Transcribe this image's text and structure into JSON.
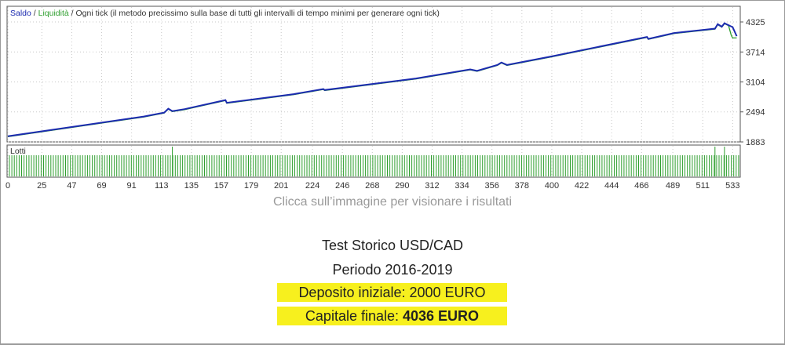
{
  "chart_data": {
    "type": "line",
    "legend": {
      "balance_label": "Saldo",
      "equity_label": "Liquidità",
      "model_label": "Ogni tick (il metodo precissimo sulla base di tutti gli intervalli di tempo minimi per generare ogni tick)"
    },
    "series": [
      {
        "name": "Saldo",
        "color": "#1c2bb0",
        "x": [
          0,
          100,
          115,
          118,
          121,
          130,
          160,
          161,
          210,
          232,
          233,
          300,
          340,
          345,
          360,
          363,
          367,
          400,
          470,
          471,
          490,
          520,
          522,
          525,
          527,
          530,
          533,
          536
        ],
        "y": [
          2000,
          2400,
          2480,
          2560,
          2510,
          2550,
          2735,
          2680,
          2855,
          2960,
          2940,
          3175,
          3360,
          3330,
          3450,
          3500,
          3450,
          3625,
          4020,
          3980,
          4100,
          4190,
          4280,
          4230,
          4300,
          4260,
          4220,
          4036
        ]
      },
      {
        "name": "Liquidità",
        "color": "#2e9e2e",
        "x": [
          0,
          100,
          115,
          118,
          121,
          130,
          160,
          161,
          210,
          232,
          233,
          300,
          340,
          345,
          360,
          363,
          367,
          400,
          470,
          471,
          490,
          520,
          522,
          525,
          527,
          530,
          532,
          533,
          536
        ],
        "y": [
          1990,
          2390,
          2470,
          2550,
          2500,
          2540,
          2725,
          2670,
          2845,
          2950,
          2930,
          3165,
          3350,
          3320,
          3440,
          3490,
          3440,
          3615,
          4010,
          3970,
          4090,
          4180,
          4270,
          4220,
          4290,
          4250,
          4050,
          4000,
          4000
        ]
      }
    ],
    "yticks": [
      "4325",
      "3714",
      "3104",
      "2494",
      "1883"
    ],
    "ylim": [
      1883,
      4325
    ],
    "xticks": [
      "0",
      "25",
      "47",
      "69",
      "91",
      "113",
      "135",
      "157",
      "179",
      "201",
      "224",
      "246",
      "268",
      "290",
      "312",
      "334",
      "356",
      "378",
      "400",
      "422",
      "444",
      "466",
      "489",
      "511",
      "533"
    ],
    "xlim": [
      0,
      538
    ],
    "grid": true,
    "volume_panel": {
      "label": "Lotti",
      "bar_count": 300,
      "spikes_at": [
        121,
        520,
        527
      ],
      "bar_color": "#2e9e2e"
    }
  },
  "caption": "Clicca sull’immagine per visionare i risultati",
  "info": {
    "title": "Test Storico USD/CAD",
    "period": "Periodo 2016-2019",
    "deposit": "Deposito iniziale: 2000 EURO",
    "capital_prefix": "Capitale finale: ",
    "capital_value": "4036 EURO",
    "highlight_color": "#f7f01e"
  }
}
